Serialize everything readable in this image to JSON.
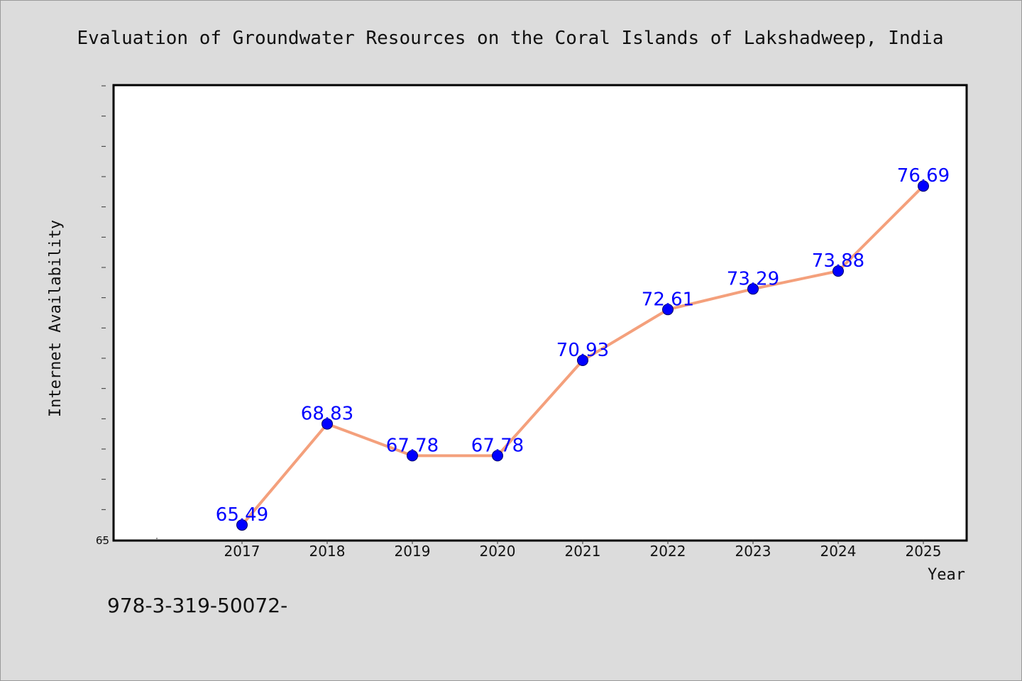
{
  "colors": {
    "background": "#dcdcdc",
    "plot_background": "#ffffff",
    "line": "#f4a07c",
    "marker": "#0000ff",
    "data_label": "#0000ff",
    "text": "#111111"
  },
  "footer": {
    "text": "978-3-319-50072-"
  },
  "chart_data": {
    "type": "line",
    "title": "Evaluation of Groundwater Resources on the Coral Islands of Lakshadweep, India",
    "xlabel": "Year",
    "ylabel": "Internet Availability",
    "categories": [
      "2017",
      "2018",
      "2019",
      "2020",
      "2021",
      "2022",
      "2023",
      "2024",
      "2025"
    ],
    "series": [
      {
        "values": [
          65.49,
          68.83,
          67.78,
          67.78,
          70.93,
          72.61,
          73.29,
          73.88,
          76.69
        ],
        "labels": [
          "65.49",
          "68.83",
          "67.78",
          "67.78",
          "70.93",
          "72.61",
          "73.29",
          "73.88",
          "76.69"
        ]
      }
    ],
    "ylim": [
      65,
      80
    ],
    "y_minor_ticks": 15,
    "y_tick_labels": [
      "65"
    ],
    "grid": false,
    "legend": "none"
  }
}
